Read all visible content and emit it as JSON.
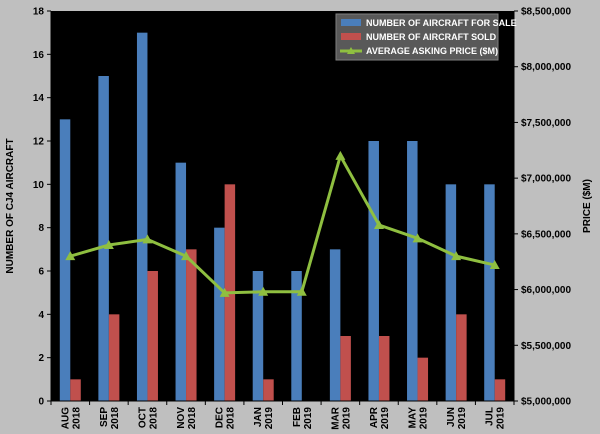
{
  "chart_data": {
    "type": "bar",
    "title": "",
    "categories": [
      [
        "AUG",
        "2018"
      ],
      [
        "SEP",
        "2018"
      ],
      [
        "OCT",
        "2018"
      ],
      [
        "NOV",
        "2018"
      ],
      [
        "DEC",
        "2018"
      ],
      [
        "JAN",
        "2019"
      ],
      [
        "FEB",
        "2019"
      ],
      [
        "MAR",
        "2019"
      ],
      [
        "APR",
        "2019"
      ],
      [
        "MAY",
        "2019"
      ],
      [
        "JUN",
        "2019"
      ],
      [
        "JUL",
        "2019"
      ]
    ],
    "ylabel": "NUMBER OF CJ4 AIRCRAFT",
    "ylabel_right": "PRICE ($M)",
    "ylim": [
      0,
      18
    ],
    "ylim_right": [
      5000000,
      8500000
    ],
    "yticks": [
      "0",
      "2",
      "4",
      "6",
      "8",
      "10",
      "12",
      "14",
      "16",
      "18"
    ],
    "yticks_right": [
      "$5,000,000",
      "$5,500,000",
      "$6,000,000",
      "$6,500,000",
      "$7,000,000",
      "$7,500,000",
      "$8,000,000",
      "$8,500,000"
    ],
    "legend_position": "top-right",
    "series": [
      {
        "name": "NUMBER OF AIRCRAFT FOR SALE",
        "kind": "bar",
        "axis": "left",
        "color": "#4a7ebb",
        "values": [
          13,
          15,
          17,
          11,
          8,
          6,
          6,
          7,
          12,
          12,
          10,
          10
        ]
      },
      {
        "name": "NUMBER OF AIRCRAFT SOLD",
        "kind": "bar",
        "axis": "left",
        "color": "#c0504d",
        "values": [
          1,
          4,
          6,
          7,
          10,
          1,
          0,
          3,
          3,
          2,
          4,
          1
        ]
      },
      {
        "name": "AVERAGE ASKING PRICE ($M)",
        "kind": "line",
        "axis": "right",
        "color": "#8fbf40",
        "marker": "triangle",
        "values": [
          6300000,
          6400000,
          6450000,
          6300000,
          5970000,
          5980000,
          5980000,
          7200000,
          6580000,
          6460000,
          6300000,
          6220000
        ]
      }
    ],
    "grid": false
  }
}
